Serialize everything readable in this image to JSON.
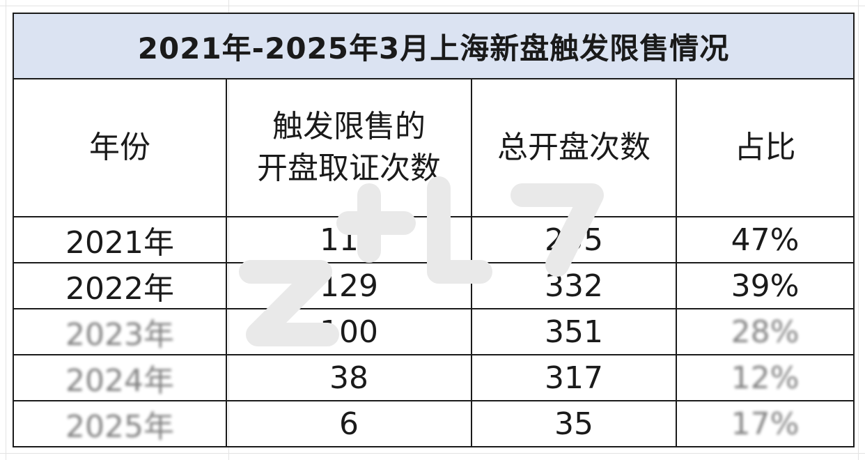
{
  "table": {
    "title": "2021年-2025年3月上海新盘触发限售情况",
    "headers": {
      "year": "年份",
      "triggered_line1": "触发限售的",
      "triggered_line2": "开盘取证次数",
      "total": "总开盘次数",
      "ratio": "占比"
    },
    "rows": [
      {
        "year": "2021年",
        "triggered": "119",
        "total": "255",
        "ratio": "47%",
        "obscured": false
      },
      {
        "year": "2022年",
        "triggered": "129",
        "total": "332",
        "ratio": "39%",
        "obscured": false
      },
      {
        "year": "2023年",
        "triggered": "100",
        "total": "351",
        "ratio": "28%",
        "obscured": true
      },
      {
        "year": "2024年",
        "triggered": "38",
        "total": "317",
        "ratio": "12%",
        "obscured": true
      },
      {
        "year": "2025年",
        "triggered": "6",
        "total": "35",
        "ratio": "17%",
        "obscured": true
      }
    ]
  },
  "colors": {
    "title_background": "#dbe3f2",
    "border": "#1a1a1a",
    "text": "#1a1a1a"
  }
}
